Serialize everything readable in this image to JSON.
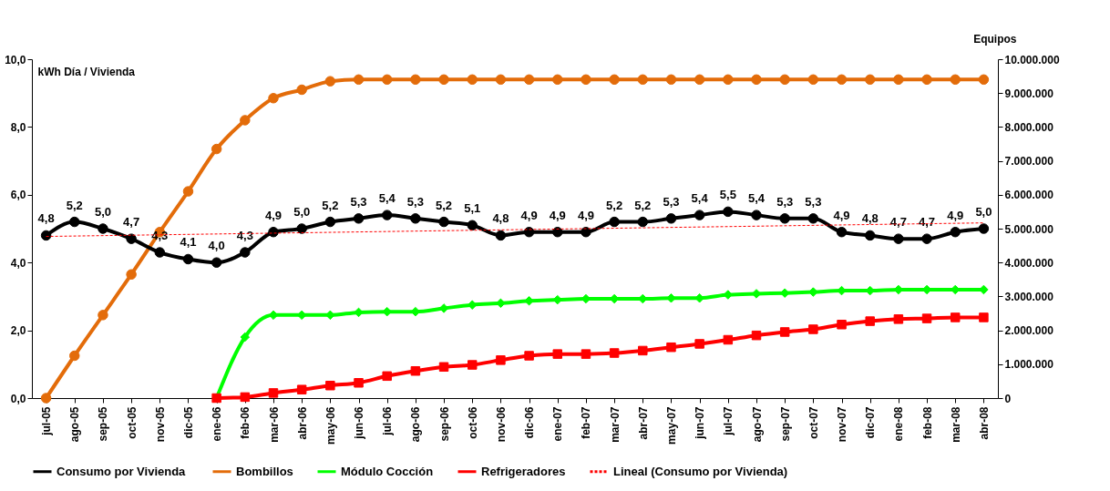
{
  "chart_data": {
    "type": "line",
    "ylabel": "kWh Día / Vivienda",
    "y2label": "Equipos",
    "categories": [
      "jul-05",
      "ago-05",
      "sep-05",
      "oct-05",
      "nov-05",
      "dic-05",
      "ene-06",
      "feb-06",
      "mar-06",
      "abr-06",
      "may-06",
      "jun-06",
      "jul-06",
      "ago-06",
      "sep-06",
      "oct-06",
      "nov-06",
      "dic-06",
      "ene-07",
      "feb-07",
      "mar-07",
      "abr-07",
      "may-07",
      "jun-07",
      "jul-07",
      "ago-07",
      "sep-07",
      "oct-07",
      "nov-07",
      "dic-07",
      "ene-08",
      "feb-08",
      "mar-08",
      "abr-08"
    ],
    "series": [
      {
        "name": "Consumo  por Vivienda",
        "color": "#000000",
        "marker": "circle",
        "values": [
          4.8,
          5.2,
          5.0,
          4.7,
          4.3,
          4.1,
          4.0,
          4.3,
          4.9,
          5.0,
          5.2,
          5.3,
          5.4,
          5.3,
          5.2,
          5.1,
          4.8,
          4.9,
          4.9,
          4.9,
          5.2,
          5.2,
          5.3,
          5.4,
          5.5,
          5.4,
          5.3,
          5.3,
          4.9,
          4.8,
          4.7,
          4.7,
          4.9,
          5.0
        ],
        "value_labels": [
          "4,8",
          "5,2",
          "5,0",
          "4,7",
          "4,3",
          "4,1",
          "4,0",
          "4,3",
          "4,9",
          "5,0",
          "5,2",
          "5,3",
          "5,4",
          "5,3",
          "5,2",
          "5,1",
          "4,8",
          "4,9",
          "4,9",
          "4,9",
          "5,2",
          "5,2",
          "5,3",
          "5,4",
          "5,5",
          "5,4",
          "5,3",
          "5,3",
          "4,9",
          "4,8",
          "4,7",
          "4,7",
          "4,9",
          "5,0"
        ]
      },
      {
        "name": "Bombillos",
        "color": "#e36c0a",
        "marker": "circle",
        "axis": "y2",
        "values": [
          0,
          1250000,
          2450000,
          3650000,
          4900000,
          6100000,
          7350000,
          8200000,
          8850000,
          9100000,
          9350000,
          9400000,
          9400000,
          9400000,
          9400000,
          9400000,
          9400000,
          9400000,
          9400000,
          9400000,
          9400000,
          9400000,
          9400000,
          9400000,
          9400000,
          9400000,
          9400000,
          9400000,
          9400000,
          9400000,
          9400000,
          9400000,
          9400000,
          9400000
        ]
      },
      {
        "name": "Módulo Cocción",
        "color": "#00ff00",
        "marker": "diamond",
        "axis": "y2",
        "values": [
          null,
          null,
          null,
          null,
          null,
          null,
          0,
          1800000,
          2450000,
          2450000,
          2450000,
          2530000,
          2550000,
          2550000,
          2650000,
          2750000,
          2800000,
          2870000,
          2900000,
          2930000,
          2930000,
          2930000,
          2950000,
          2950000,
          3050000,
          3080000,
          3100000,
          3130000,
          3170000,
          3170000,
          3200000,
          3200000,
          3200000,
          3200000
        ]
      },
      {
        "name": "Refrigeradores",
        "color": "#ff0000",
        "marker": "square",
        "axis": "y2",
        "values": [
          null,
          null,
          null,
          null,
          null,
          null,
          0,
          30000,
          150000,
          250000,
          370000,
          450000,
          650000,
          800000,
          920000,
          980000,
          1120000,
          1250000,
          1300000,
          1300000,
          1330000,
          1400000,
          1500000,
          1600000,
          1720000,
          1850000,
          1950000,
          2030000,
          2170000,
          2270000,
          2330000,
          2350000,
          2380000,
          2380000
        ]
      },
      {
        "name": "Lineal (Consumo  por Vivienda)",
        "color": "#ff0000",
        "marker": "none",
        "line_style": "dashed",
        "values": [
          4.77,
          null,
          null,
          null,
          null,
          null,
          null,
          null,
          null,
          null,
          null,
          null,
          null,
          null,
          null,
          null,
          null,
          null,
          null,
          null,
          null,
          null,
          null,
          null,
          null,
          null,
          null,
          null,
          null,
          null,
          null,
          null,
          null,
          5.17
        ]
      }
    ],
    "ylim": [
      0,
      10
    ],
    "yticks": [
      {
        "value": 0,
        "label": "0,0"
      },
      {
        "value": 2,
        "label": "2,0"
      },
      {
        "value": 4,
        "label": "4,0"
      },
      {
        "value": 6,
        "label": "6,0"
      },
      {
        "value": 8,
        "label": "8,0"
      },
      {
        "value": 10,
        "label": "10,0"
      }
    ],
    "y2lim": [
      0,
      10000000
    ],
    "y2ticks": [
      0,
      {
        "value": 1000000,
        "label": "1.000.000"
      },
      {
        "value": 2000000,
        "label": "2.000.000"
      },
      {
        "value": 3000000,
        "label": "3.000.000"
      },
      {
        "value": 4000000,
        "label": "4.000.000"
      },
      {
        "value": 5000000,
        "label": "5.000.000"
      },
      {
        "value": 6000000,
        "label": "6.000.000"
      },
      {
        "value": 7000000,
        "label": "7.000.000"
      },
      {
        "value": 8000000,
        "label": "8.000.000"
      },
      {
        "value": 9000000,
        "label": "9.000.000"
      },
      {
        "value": 10000000,
        "label": "10.000.000"
      }
    ],
    "grid": false,
    "legend": "bottom"
  }
}
